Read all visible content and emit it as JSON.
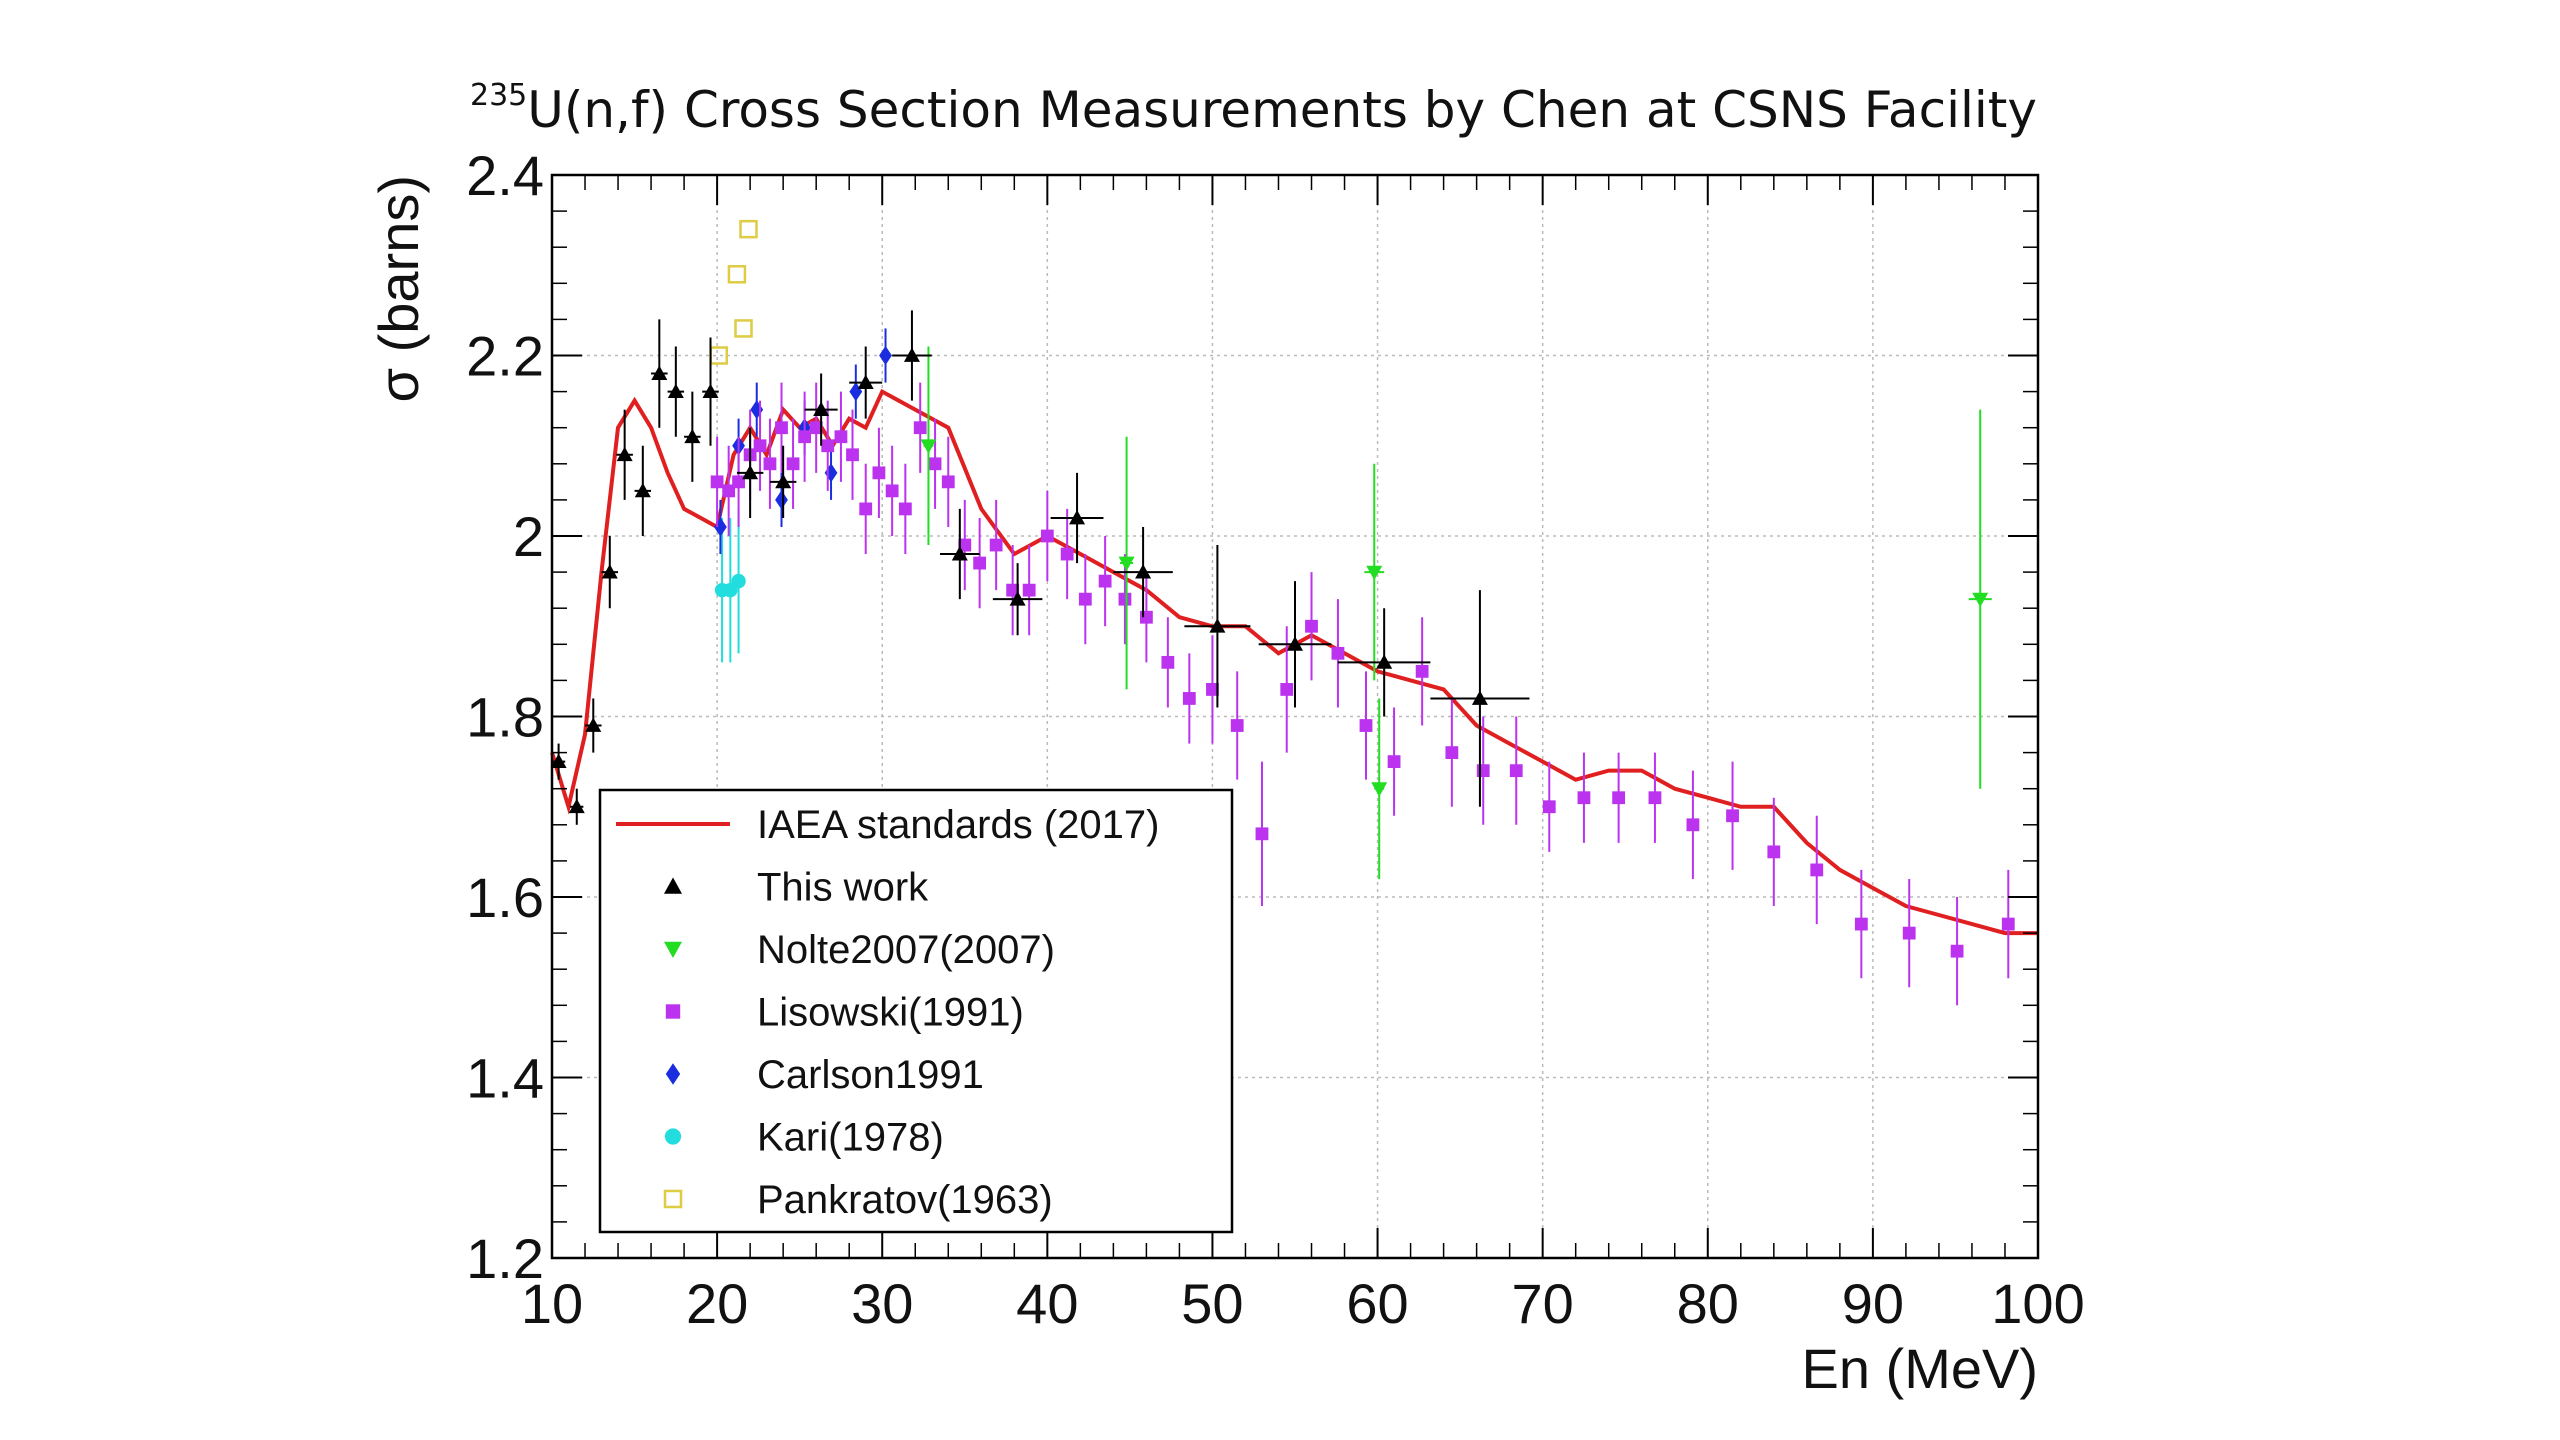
{
  "chart_data": {
    "type": "scatter",
    "title_sup": "235",
    "title": "U(n,f) Cross Section Measurements by Chen at CSNS Facility",
    "xlabel": "En (MeV)",
    "ylabel": "σ (barns)",
    "xlim": [
      10,
      100
    ],
    "ylim": [
      1.2,
      2.4
    ],
    "xticks": [
      10,
      20,
      30,
      40,
      50,
      60,
      70,
      80,
      90,
      100
    ],
    "yticks": [
      1.2,
      1.4,
      1.6,
      1.8,
      2,
      2.2,
      2.4
    ],
    "grid": true,
    "legend_position": "bottom-left",
    "curve": {
      "name": "IAEA standards (2017)",
      "color": "#e02020",
      "x": [
        10,
        11,
        12,
        13,
        14,
        15,
        16,
        17,
        18,
        19,
        20,
        21,
        22,
        23,
        24,
        25,
        26,
        27,
        28,
        29,
        30,
        32,
        34,
        36,
        38,
        40,
        42,
        44,
        46,
        48,
        50,
        52,
        54,
        56,
        58,
        60,
        62,
        64,
        66,
        68,
        70,
        72,
        74,
        76,
        78,
        80,
        82,
        84,
        86,
        88,
        90,
        92,
        94,
        96,
        98,
        100
      ],
      "y": [
        1.76,
        1.7,
        1.78,
        1.96,
        2.12,
        2.15,
        2.12,
        2.07,
        2.03,
        2.02,
        2.01,
        2.09,
        2.12,
        2.09,
        2.14,
        2.12,
        2.13,
        2.1,
        2.13,
        2.12,
        2.16,
        2.14,
        2.12,
        2.03,
        1.98,
        2.0,
        1.98,
        1.96,
        1.94,
        1.91,
        1.9,
        1.9,
        1.87,
        1.89,
        1.87,
        1.85,
        1.84,
        1.83,
        1.79,
        1.77,
        1.75,
        1.73,
        1.74,
        1.74,
        1.72,
        1.71,
        1.7,
        1.7,
        1.66,
        1.63,
        1.61,
        1.59,
        1.58,
        1.57,
        1.56,
        1.56
      ]
    },
    "series": [
      {
        "name": "This work",
        "marker": "triangle-up",
        "color": "#000000",
        "x": [
          10.4,
          11.5,
          12.5,
          13.5,
          14.4,
          15.5,
          16.5,
          17.5,
          18.5,
          19.6,
          22,
          24,
          26.3,
          29,
          31.8,
          34.7,
          38.2,
          41.8,
          45.8,
          50.3,
          55,
          60.4,
          66.2
        ],
        "y": [
          1.75,
          1.7,
          1.79,
          1.96,
          2.09,
          2.05,
          2.18,
          2.16,
          2.11,
          2.16,
          2.07,
          2.06,
          2.14,
          2.17,
          2.2,
          1.98,
          1.93,
          2.02,
          1.96,
          1.9,
          1.88,
          1.86,
          1.82
        ],
        "yerr": [
          0.02,
          0.02,
          0.03,
          0.04,
          0.05,
          0.05,
          0.06,
          0.05,
          0.05,
          0.06,
          0.05,
          0.04,
          0.04,
          0.04,
          0.05,
          0.05,
          0.04,
          0.05,
          0.05,
          0.09,
          0.07,
          0.06,
          0.12
        ],
        "xerr": [
          0.4,
          0.4,
          0.5,
          0.5,
          0.5,
          0.5,
          0.5,
          0.5,
          0.5,
          0.5,
          0.8,
          0.8,
          1.0,
          1.0,
          1.2,
          1.2,
          1.5,
          1.6,
          1.8,
          2.0,
          2.2,
          2.8,
          3.0
        ]
      },
      {
        "name": "Nolte2007(2007)",
        "marker": "triangle-down",
        "color": "#22dd22",
        "x": [
          32.8,
          44.8,
          59.8,
          60.1,
          96.5
        ],
        "y": [
          2.1,
          1.97,
          1.96,
          1.72,
          1.93
        ],
        "yerr": [
          0.11,
          0.14,
          0.12,
          0.1,
          0.21
        ],
        "xerr": [
          0.3,
          0.4,
          0.6,
          0.3,
          0.7
        ]
      },
      {
        "name": "Lisowski(1991)",
        "marker": "square",
        "color": "#bb33ee",
        "x": [
          20,
          20.7,
          21.3,
          22,
          22.6,
          23.2,
          23.9,
          24.6,
          25.3,
          26,
          26.7,
          27.5,
          28.2,
          29,
          29.8,
          30.6,
          31.4,
          32.3,
          33.2,
          34,
          35,
          35.9,
          36.9,
          37.9,
          38.9,
          40,
          41.2,
          42.3,
          43.5,
          44.7,
          46,
          47.3,
          48.6,
          50,
          51.5,
          53,
          54.5,
          56,
          57.6,
          59.3,
          61,
          62.7,
          64.5,
          66.4,
          68.4,
          70.4,
          72.5,
          74.6,
          76.8,
          79.1,
          81.5,
          84,
          86.6,
          89.3,
          92.2,
          95.1,
          98.2
        ],
        "y": [
          2.06,
          2.05,
          2.06,
          2.09,
          2.1,
          2.08,
          2.12,
          2.08,
          2.11,
          2.12,
          2.1,
          2.11,
          2.09,
          2.03,
          2.07,
          2.05,
          2.03,
          2.12,
          2.08,
          2.06,
          1.99,
          1.97,
          1.99,
          1.94,
          1.94,
          2.0,
          1.98,
          1.93,
          1.95,
          1.93,
          1.91,
          1.86,
          1.82,
          1.83,
          1.79,
          1.67,
          1.83,
          1.9,
          1.87,
          1.79,
          1.75,
          1.85,
          1.76,
          1.74,
          1.74,
          1.7,
          1.71,
          1.71,
          1.71,
          1.68,
          1.69,
          1.65,
          1.63,
          1.57,
          1.56,
          1.54,
          1.57
        ],
        "yerr": [
          0.05,
          0.05,
          0.05,
          0.05,
          0.05,
          0.05,
          0.05,
          0.05,
          0.05,
          0.05,
          0.05,
          0.05,
          0.05,
          0.05,
          0.05,
          0.05,
          0.05,
          0.05,
          0.05,
          0.05,
          0.05,
          0.05,
          0.05,
          0.05,
          0.05,
          0.05,
          0.05,
          0.05,
          0.05,
          0.05,
          0.05,
          0.05,
          0.05,
          0.06,
          0.06,
          0.08,
          0.07,
          0.06,
          0.06,
          0.06,
          0.06,
          0.06,
          0.06,
          0.06,
          0.06,
          0.05,
          0.05,
          0.05,
          0.05,
          0.06,
          0.06,
          0.06,
          0.06,
          0.06,
          0.06,
          0.06,
          0.06
        ]
      },
      {
        "name": "Carlson1991",
        "marker": "diamond",
        "color": "#1a2ee0",
        "x": [
          20.2,
          21.3,
          22.4,
          23.9,
          25.3,
          26.9,
          28.4,
          30.2
        ],
        "y": [
          2.01,
          2.1,
          2.14,
          2.04,
          2.12,
          2.07,
          2.16,
          2.2
        ],
        "yerr": [
          0.03,
          0.03,
          0.03,
          0.03,
          0.03,
          0.03,
          0.03,
          0.03
        ]
      },
      {
        "name": "Kari(1978)",
        "marker": "circle",
        "color": "#22dddd",
        "x": [
          20.3,
          20.8,
          21.3
        ],
        "y": [
          1.94,
          1.94,
          1.95
        ],
        "yerr": [
          0.08,
          0.08,
          0.08
        ]
      },
      {
        "name": "Pankratov(1963)",
        "marker": "open-square",
        "color": "#ddcc44",
        "x": [
          20.1,
          21.2,
          21.6,
          21.9
        ],
        "y": [
          2.2,
          2.29,
          2.23,
          2.34
        ],
        "yerr": [
          0,
          0,
          0,
          0
        ]
      }
    ]
  }
}
